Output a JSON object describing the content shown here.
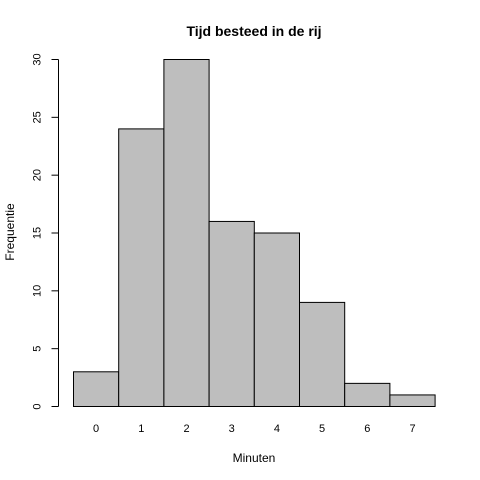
{
  "chart_data": {
    "type": "bar",
    "title": "Tijd besteed in de rij",
    "xlabel": "Minuten",
    "ylabel": "Frequentie",
    "categories": [
      "0",
      "1",
      "2",
      "3",
      "4",
      "5",
      "6",
      "7"
    ],
    "values": [
      3,
      24,
      30,
      16,
      15,
      9,
      2,
      1
    ],
    "ylim": [
      0,
      30
    ],
    "yticks": [
      0,
      5,
      10,
      15,
      20,
      25,
      30
    ],
    "grid": false,
    "bar_color": "#bebebe",
    "border_color": "#000000"
  }
}
